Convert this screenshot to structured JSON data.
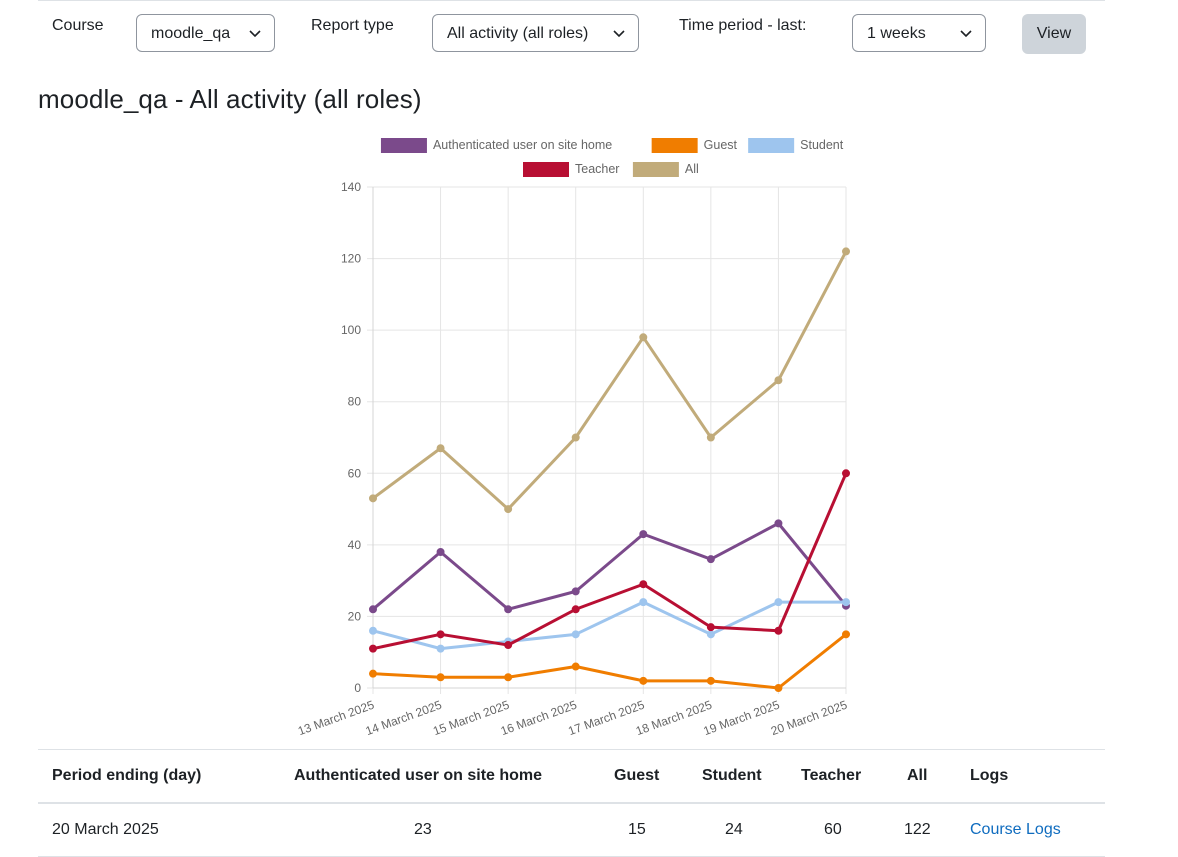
{
  "filters": {
    "course_label": "Course",
    "course_value": "moodle_qa",
    "report_type_label": "Report type",
    "report_type_value": "All activity (all roles)",
    "time_period_label": "Time period - last:",
    "time_period_value": "1 weeks",
    "view_button": "View"
  },
  "report_title": "moodle_qa - All activity (all roles)",
  "chart_data": {
    "type": "line",
    "categories": [
      "13 March 2025",
      "14 March 2025",
      "15 March 2025",
      "16 March 2025",
      "17 March 2025",
      "18 March 2025",
      "19 March 2025",
      "20 March 2025"
    ],
    "ylim": [
      0,
      140
    ],
    "yticks": [
      0,
      20,
      40,
      60,
      80,
      100,
      120,
      140
    ],
    "grid": true,
    "legend_position": "top",
    "series": [
      {
        "name": "Authenticated user on site home",
        "color": "#7b4a8b",
        "values": [
          22,
          38,
          22,
          27,
          43,
          36,
          46,
          23
        ]
      },
      {
        "name": "Guest",
        "color": "#f07d00",
        "values": [
          4,
          3,
          3,
          6,
          2,
          2,
          0,
          15
        ]
      },
      {
        "name": "Student",
        "color": "#9ec5ee",
        "values": [
          16,
          11,
          13,
          15,
          24,
          15,
          24,
          24
        ]
      },
      {
        "name": "Teacher",
        "color": "#b80f33",
        "values": [
          11,
          15,
          12,
          22,
          29,
          17,
          16,
          60
        ]
      },
      {
        "name": "All",
        "color": "#c1ab7a",
        "values": [
          53,
          67,
          50,
          70,
          98,
          70,
          86,
          122
        ]
      }
    ]
  },
  "table": {
    "headers": {
      "period": "Period ending (day)",
      "auth": "Authenticated user on site home",
      "guest": "Guest",
      "student": "Student",
      "teacher": "Teacher",
      "all": "All",
      "logs": "Logs"
    },
    "rows": [
      {
        "period": "20 March 2025",
        "auth": "23",
        "guest": "15",
        "student": "24",
        "teacher": "60",
        "all": "122",
        "logs": "Course Logs"
      }
    ]
  },
  "icons": {
    "select_arrow": "chevron-down-icon"
  }
}
